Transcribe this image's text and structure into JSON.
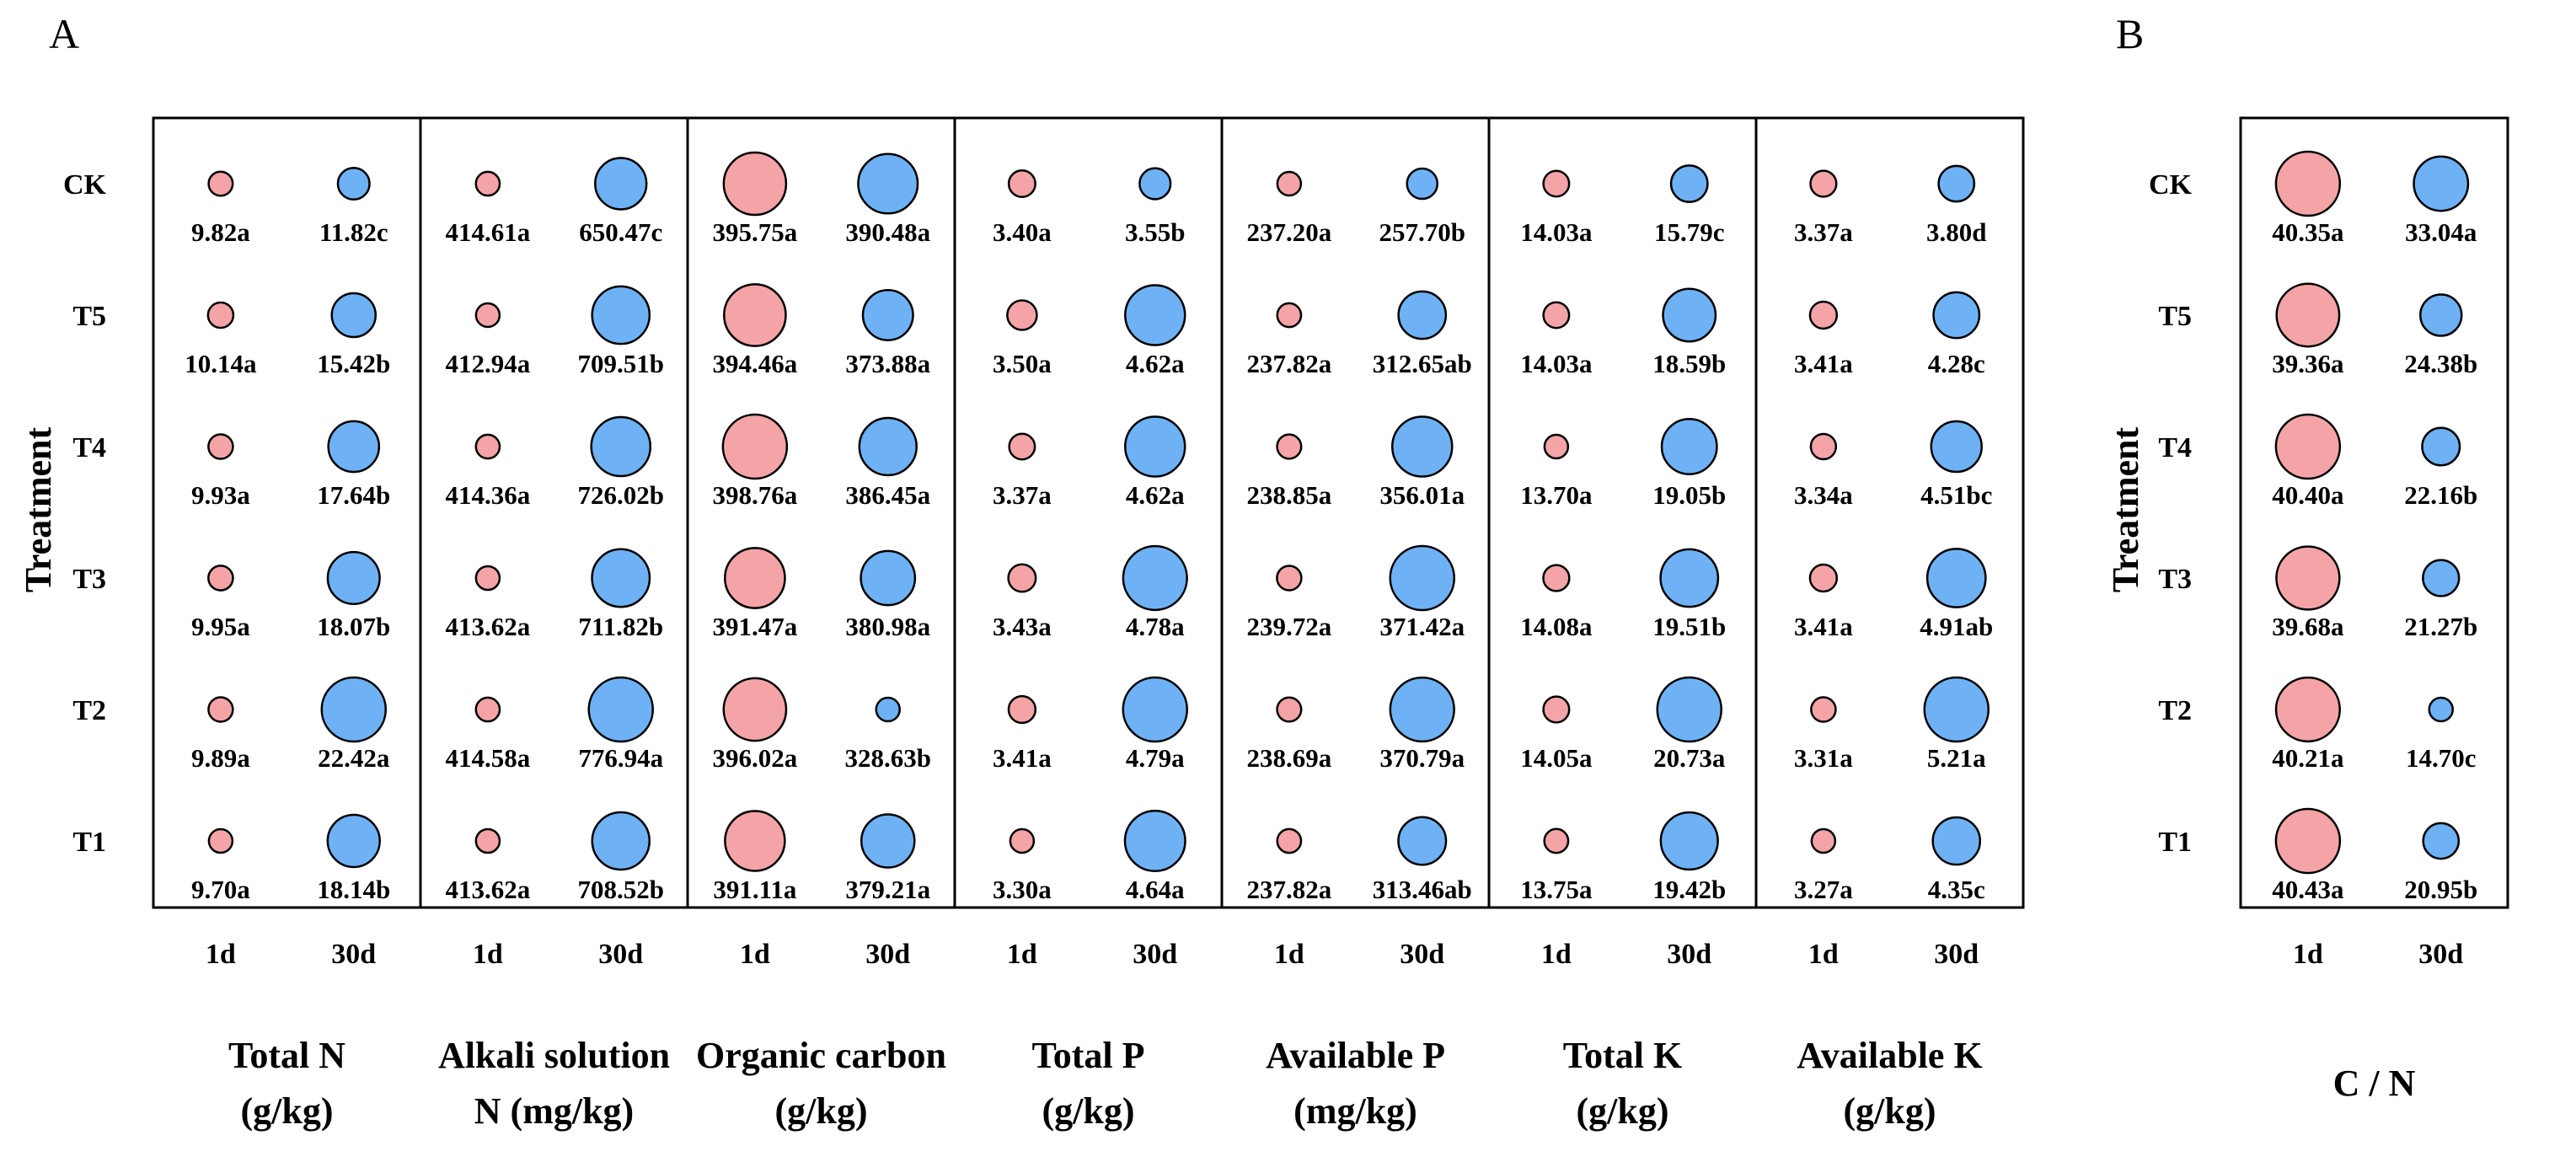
{
  "chart_data": {
    "type": "bubble",
    "colors": {
      "day1": "#f4a4a6",
      "day30": "#6eb2f5",
      "stroke": "#000000"
    },
    "panels": [
      {
        "panel_label": "A",
        "ylabel": "Treatment",
        "treatments": [
          "CK",
          "T5",
          "T4",
          "T3",
          "T2",
          "T1"
        ],
        "days": [
          "1d",
          "30d"
        ],
        "groups": [
          {
            "label_lines": [
              "Total N",
              "(g/kg)"
            ],
            "day1": [
              9.82,
              10.14,
              9.93,
              9.95,
              9.89,
              9.7
            ],
            "day30": [
              11.82,
              15.42,
              17.64,
              18.07,
              22.42,
              18.14
            ],
            "labels1": [
              "9.82a",
              "10.14a",
              "9.93a",
              "9.95a",
              "9.89a",
              "9.70a"
            ],
            "labels30": [
              "11.82c",
              "15.42b",
              "17.64b",
              "18.07b",
              "22.42a",
              "18.14b"
            ]
          },
          {
            "label_lines": [
              "Alkali solution",
              "N (mg/kg)"
            ],
            "day1": [
              414.61,
              412.94,
              414.36,
              413.62,
              414.58,
              413.62
            ],
            "day30": [
              650.47,
              709.51,
              726.02,
              711.82,
              776.94,
              708.52
            ],
            "labels1": [
              "414.61a",
              "412.94a",
              "414.36a",
              "413.62a",
              "414.58a",
              "413.62a"
            ],
            "labels30": [
              "650.47c",
              "709.51b",
              "726.02b",
              "711.82b",
              "776.94a",
              "708.52b"
            ]
          },
          {
            "label_lines": [
              "Organic carbon",
              "(g/kg)"
            ],
            "day1": [
              395.75,
              394.46,
              398.76,
              391.47,
              396.02,
              391.11
            ],
            "day30": [
              390.48,
              373.88,
              386.45,
              380.98,
              328.63,
              379.21
            ],
            "labels1": [
              "395.75a",
              "394.46a",
              "398.76a",
              "391.47a",
              "396.02a",
              "391.11a"
            ],
            "labels30": [
              "390.48a",
              "373.88a",
              "386.45a",
              "380.98a",
              "328.63b",
              "379.21a"
            ]
          },
          {
            "label_lines": [
              "Total P",
              "(g/kg)"
            ],
            "day1": [
              3.4,
              3.5,
              3.37,
              3.43,
              3.41,
              3.3
            ],
            "day30": [
              3.55,
              4.62,
              4.62,
              4.78,
              4.79,
              4.64
            ],
            "labels1": [
              "3.40a",
              "3.50a",
              "3.37a",
              "3.43a",
              "3.41a",
              "3.30a"
            ],
            "labels30": [
              "3.55b",
              "4.62a",
              "4.62a",
              "4.78a",
              "4.79a",
              "4.64a"
            ]
          },
          {
            "label_lines": [
              "Available P",
              "(mg/kg)"
            ],
            "day1": [
              237.2,
              237.82,
              238.85,
              239.72,
              238.69,
              237.82
            ],
            "day30": [
              257.7,
              312.65,
              356.01,
              371.42,
              370.79,
              313.46
            ],
            "labels1": [
              "237.20a",
              "237.82a",
              "238.85a",
              "239.72a",
              "238.69a",
              "237.82a"
            ],
            "labels30": [
              "257.70b",
              "312.65ab",
              "356.01a",
              "371.42a",
              "370.79a",
              "313.46ab"
            ]
          },
          {
            "label_lines": [
              "Total K",
              "(g/kg)"
            ],
            "day1": [
              14.03,
              14.03,
              13.7,
              14.08,
              14.05,
              13.75
            ],
            "day30": [
              15.79,
              18.59,
              19.05,
              19.51,
              20.73,
              19.42
            ],
            "labels1": [
              "14.03a",
              "14.03a",
              "13.70a",
              "14.08a",
              "14.05a",
              "13.75a"
            ],
            "labels30": [
              "15.79c",
              "18.59b",
              "19.05b",
              "19.51b",
              "20.73a",
              "19.42b"
            ]
          },
          {
            "label_lines": [
              "Available K",
              "(g/kg)"
            ],
            "day1": [
              3.37,
              3.41,
              3.34,
              3.41,
              3.31,
              3.27
            ],
            "day30": [
              3.8,
              4.28,
              4.51,
              4.91,
              5.21,
              4.35
            ],
            "labels1": [
              "3.37a",
              "3.41a",
              "3.34a",
              "3.41a",
              "3.31a",
              "3.27a"
            ],
            "labels30": [
              "3.80d",
              "4.28c",
              "4.51bc",
              "4.91ab",
              "5.21a",
              "4.35c"
            ]
          }
        ]
      },
      {
        "panel_label": "B",
        "ylabel": "Treatment",
        "treatments": [
          "CK",
          "T5",
          "T4",
          "T3",
          "T2",
          "T1"
        ],
        "days": [
          "1d",
          "30d"
        ],
        "groups": [
          {
            "label_lines": [
              "C / N"
            ],
            "day1": [
              40.35,
              39.36,
              40.4,
              39.68,
              40.21,
              40.43
            ],
            "day30": [
              33.04,
              24.38,
              22.16,
              21.27,
              14.7,
              20.95
            ],
            "labels1": [
              "40.35a",
              "39.36a",
              "40.40a",
              "39.68a",
              "40.21a",
              "40.43a"
            ],
            "labels30": [
              "33.04a",
              "24.38b",
              "22.16b",
              "21.27b",
              "14.70c",
              "20.95b"
            ]
          }
        ]
      }
    ]
  }
}
